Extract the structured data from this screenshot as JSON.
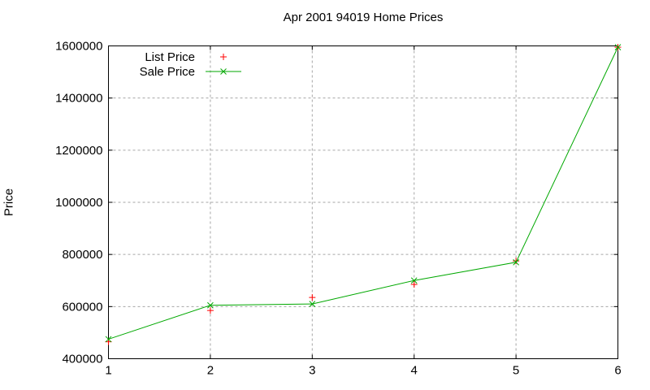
{
  "chart_data": {
    "type": "line",
    "title": "Apr 2001 94019 Home Prices",
    "xlabel": "",
    "ylabel": "Price",
    "x": [
      1,
      2,
      3,
      4,
      5,
      6
    ],
    "series": [
      {
        "name": "List Price",
        "style": "points",
        "marker": "plus",
        "color": "#ff0000",
        "values": [
          465000,
          585000,
          635000,
          685000,
          775000,
          1595000
        ]
      },
      {
        "name": "Sale Price",
        "style": "linespoints",
        "marker": "cross",
        "color": "#00a800",
        "values": [
          475000,
          605000,
          610000,
          700000,
          770000,
          1595000
        ]
      }
    ],
    "xlim": [
      1,
      6
    ],
    "ylim": [
      400000,
      1600000
    ],
    "xticks": [
      1,
      2,
      3,
      4,
      5,
      6
    ],
    "yticks": [
      400000,
      600000,
      800000,
      1000000,
      1200000,
      1400000,
      1600000
    ],
    "grid": true,
    "grid_style": "dashed",
    "grid_color": "#a6a6a6",
    "border_color": "#000000",
    "text_color": "#000000",
    "background": "#ffffff",
    "legend_position": "top-left-inside"
  }
}
